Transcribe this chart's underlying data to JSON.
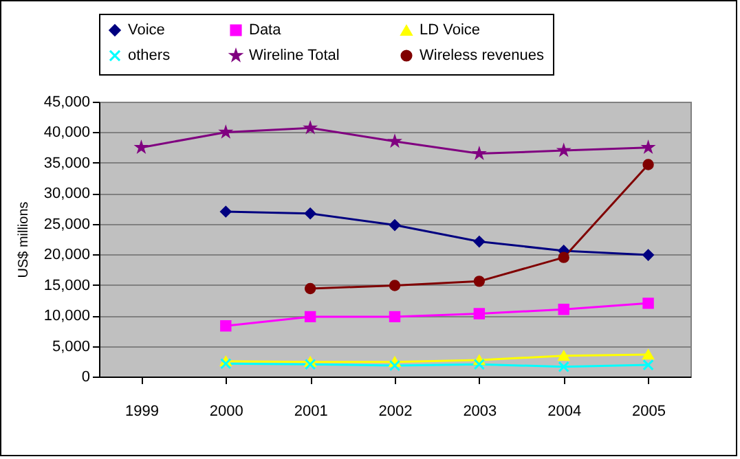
{
  "chart_data": {
    "type": "line",
    "ylabel": "US$ millions",
    "categories": [
      "1999",
      "2000",
      "2001",
      "2002",
      "2003",
      "2004",
      "2005"
    ],
    "ylim": [
      0,
      45000
    ],
    "yticks": [
      {
        "value": 0,
        "label": "0"
      },
      {
        "value": 5000,
        "label": "5,000"
      },
      {
        "value": 10000,
        "label": "10,000"
      },
      {
        "value": 15000,
        "label": "15,000"
      },
      {
        "value": 20000,
        "label": "20,000"
      },
      {
        "value": 25000,
        "label": "25,000"
      },
      {
        "value": 30000,
        "label": "30,000"
      },
      {
        "value": 35000,
        "label": "35,000"
      },
      {
        "value": 40000,
        "label": "40,000"
      },
      {
        "value": 45000,
        "label": "45,000"
      }
    ],
    "grid": "y",
    "legend": "top",
    "line_style": "solid",
    "series": [
      {
        "name": "Voice",
        "color": "#000080",
        "marker": "diamond",
        "values": [
          null,
          27000,
          26700,
          24800,
          22100,
          20600,
          19900
        ]
      },
      {
        "name": "Data",
        "color": "#ff00ff",
        "marker": "square",
        "values": [
          null,
          8300,
          9800,
          9800,
          10300,
          11000,
          12000
        ]
      },
      {
        "name": "LD Voice",
        "color": "#ffff00",
        "marker": "triangle",
        "values": [
          null,
          2500,
          2400,
          2400,
          2700,
          3400,
          3600
        ]
      },
      {
        "name": "others",
        "color": "#00ffff",
        "marker": "cross",
        "values": [
          null,
          2100,
          2000,
          1800,
          2000,
          1600,
          1900
        ]
      },
      {
        "name": "Wireline Total",
        "color": "#800080",
        "marker": "star",
        "values": [
          37500,
          40000,
          40700,
          38500,
          36500,
          37000,
          37500
        ]
      },
      {
        "name": "Wireless revenues",
        "color": "#800000",
        "marker": "circle",
        "values": [
          null,
          null,
          14400,
          14900,
          15600,
          19500,
          34700
        ]
      }
    ]
  }
}
